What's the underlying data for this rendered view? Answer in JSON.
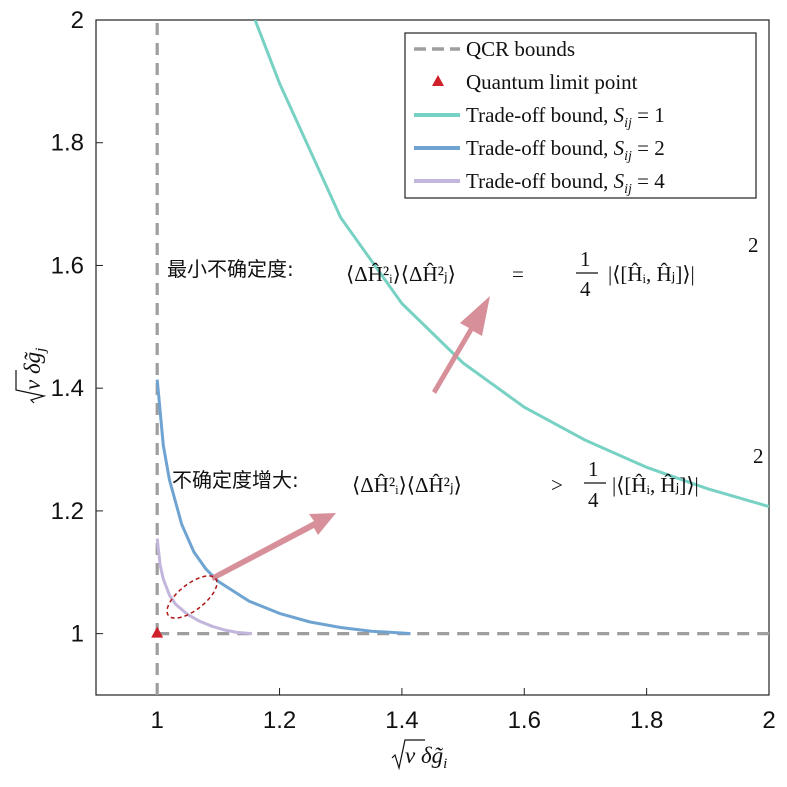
{
  "chart_data": {
    "type": "line",
    "xlabel": "√ν δg̃ᵢ",
    "ylabel": "√ν δg̃ⱼ",
    "xlim": [
      0.9,
      2.0
    ],
    "ylim": [
      0.9,
      2.0
    ],
    "xticks": [
      1,
      1.2,
      1.4,
      1.6,
      1.8,
      2
    ],
    "yticks": [
      1,
      1.2,
      1.4,
      1.6,
      1.8,
      2
    ],
    "xtick_labels": [
      "1",
      "1.2",
      "1.4",
      "1.6",
      "1.8",
      "2"
    ],
    "ytick_labels": [
      "1",
      "1.2",
      "1.4",
      "1.6",
      "1.8",
      "2"
    ],
    "grid": false,
    "legend_position": "top-right",
    "colors": {
      "qcr": "#9e9e9e",
      "point": "#d0202a",
      "s1": "#78d2c4",
      "s2": "#6fa4d2",
      "s4": "#c3b6dc",
      "arrow": "#d58a95",
      "ellipse": "#b01818"
    },
    "series": [
      {
        "name": "QCR bounds",
        "style": "dashed",
        "segments": [
          {
            "x": [
              1,
              1
            ],
            "y": [
              0.9,
              2.0
            ]
          },
          {
            "x": [
              1,
              2
            ],
            "y": [
              1,
              1
            ]
          }
        ]
      },
      {
        "name": "Quantum limit point",
        "style": "marker-triangle",
        "x": [
          1
        ],
        "y": [
          1
        ]
      },
      {
        "name": "Trade-off bound, S_ij = 1",
        "style": "solid",
        "x": [
          1.16,
          1.2,
          1.3,
          1.4,
          1.5,
          1.6,
          1.7,
          1.8,
          1.9,
          2.0
        ],
        "y": [
          2.0,
          1.897,
          1.678,
          1.538,
          1.441,
          1.369,
          1.315,
          1.271,
          1.236,
          1.207
        ]
      },
      {
        "name": "Trade-off bound, S_ij = 2",
        "style": "solid",
        "x": [
          1.0,
          1.01,
          1.02,
          1.04,
          1.06,
          1.08,
          1.1,
          1.15,
          1.2,
          1.25,
          1.3,
          1.35,
          1.4,
          1.414
        ],
        "y": [
          1.414,
          1.307,
          1.251,
          1.178,
          1.133,
          1.105,
          1.085,
          1.053,
          1.033,
          1.019,
          1.01,
          1.004,
          1.001,
          1.0
        ]
      },
      {
        "name": "Trade-off bound, S_ij = 4",
        "style": "solid",
        "x": [
          1.0,
          1.005,
          1.01,
          1.02,
          1.03,
          1.05,
          1.07,
          1.09,
          1.11,
          1.13,
          1.155
        ],
        "y": [
          1.155,
          1.111,
          1.089,
          1.063,
          1.048,
          1.031,
          1.02,
          1.012,
          1.006,
          1.002,
          1.0
        ]
      }
    ]
  },
  "legend": [
    {
      "key": "qcr",
      "label": "QCR bounds",
      "kind": "dash"
    },
    {
      "key": "point",
      "label": "Quantum limit point",
      "kind": "triangle"
    },
    {
      "key": "s1",
      "label": "Trade-off bound, ",
      "sym": "S",
      "sub": "ij",
      "eq": " = 1",
      "kind": "line"
    },
    {
      "key": "s2",
      "label": "Trade-off bound, ",
      "sym": "S",
      "sub": "ij",
      "eq": " = 2",
      "kind": "line"
    },
    {
      "key": "s4",
      "label": "Trade-off bound, ",
      "sym": "S",
      "sub": "ij",
      "eq": " = 4",
      "kind": "line"
    }
  ],
  "annotations": {
    "min_uncertainty_label": "最小不确定度:",
    "increased_uncertainty_label": "不确定度增大:",
    "lhs": "⟨ΔĤ²ᵢ⟩⟨ΔĤ²ⱼ⟩",
    "eq_sign": "=",
    "gt_sign": ">",
    "frac_num": "1",
    "frac_den": "4",
    "rhs": "|⟨[Ĥᵢ, Ĥⱼ]⟩|",
    "rhs_power": "2"
  }
}
